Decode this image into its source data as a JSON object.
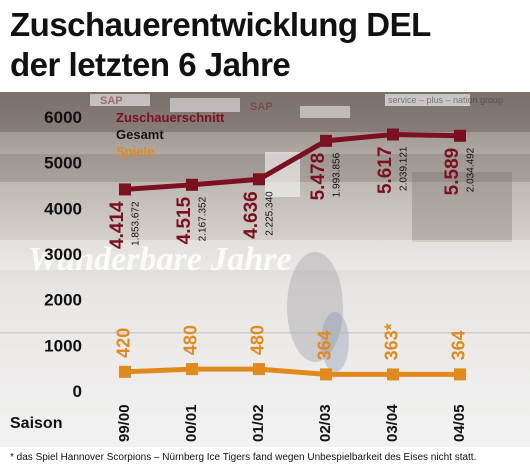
{
  "title_line1": "Zuschauerentwicklung DEL",
  "title_line2": "der letzten 6 Jahre",
  "footnote": "* das Spiel Hannover Scorpions – Nürnberg Ice Tigers fand wegen Unbespielbarkeit des Eises nicht statt.",
  "colors": {
    "zuschauer": "#7a1020",
    "spiele": "#e08a1e",
    "gesamt_text": "#111111"
  },
  "background_texts": [
    "Wunderbare Jahre",
    "SAP",
    "service – plus – nation group"
  ],
  "chart_data": {
    "type": "line",
    "x_label": "Saison",
    "categories": [
      "99/00",
      "00/01",
      "01/02",
      "02/03",
      "03/04",
      "04/05"
    ],
    "ylim": [
      0,
      6000
    ],
    "yticks": [
      0,
      1000,
      2000,
      3000,
      4000,
      5000,
      6000
    ],
    "legend": [
      "Zuschauerschnitt",
      "Gesamt",
      "Spiele"
    ],
    "series": [
      {
        "name": "Zuschauerschnitt",
        "values": [
          4414,
          4515,
          4636,
          5478,
          5617,
          5589
        ],
        "labels": [
          "4.414",
          "4.515",
          "4.636",
          "5.478",
          "5.617",
          "5.589"
        ]
      },
      {
        "name": "Spiele",
        "values": [
          420,
          480,
          480,
          364,
          363,
          364
        ],
        "labels": [
          "420",
          "480",
          "480",
          "364",
          "363*",
          "364"
        ]
      }
    ],
    "gesamt": [
      "1.853.672",
      "2.167.352",
      "2.225.340",
      "1.993.856",
      "2.039.121",
      "2.034.492"
    ]
  }
}
